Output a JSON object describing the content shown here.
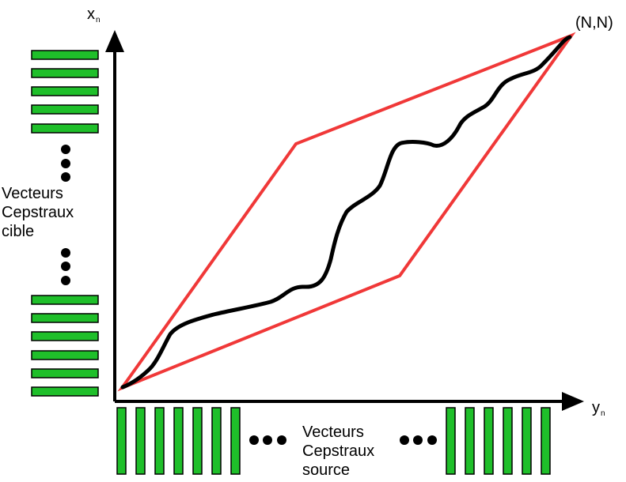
{
  "axes": {
    "x_axis": {
      "symbol": "y",
      "subscript": "n"
    },
    "y_axis": {
      "symbol": "x",
      "subscript": "n"
    },
    "corner_label": "(N,N)"
  },
  "target_vectors": {
    "label_lines": [
      "Vecteurs",
      "Cepstraux",
      "cible"
    ]
  },
  "source_vectors": {
    "label_lines": [
      "Vecteurs",
      "Cepstraux",
      "source"
    ]
  },
  "colors": {
    "vector_fill": "#1fbf2a",
    "vector_stroke": "#000000",
    "constraint_region": "#f03838",
    "warping_path": "#000000",
    "axes": "#000000"
  },
  "icons": {
    "ellipsis": "dot-icon",
    "axis_end": "arrowhead-icon"
  }
}
